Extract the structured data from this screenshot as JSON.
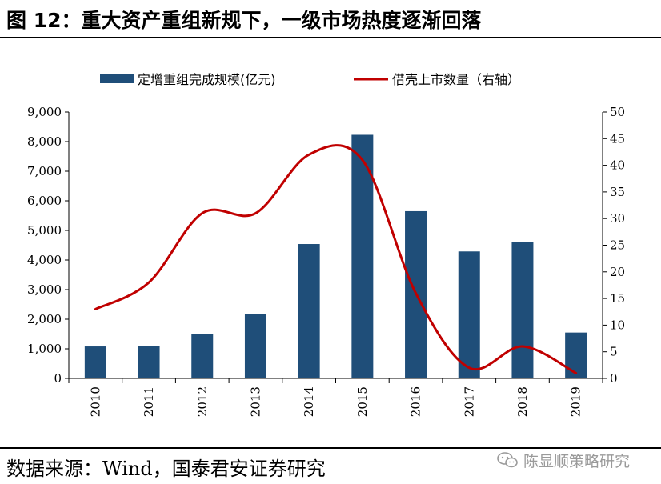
{
  "figure": {
    "title": "图 12：重大资产重组新规下，一级市场热度逐渐回落",
    "source": "数据来源：Wind，国泰君安证券研究",
    "watermark": "陈显顺策略研究",
    "watermark_icon": "wechat-icon"
  },
  "chart_data": {
    "type": "bar",
    "categories": [
      "2010",
      "2011",
      "2012",
      "2013",
      "2014",
      "2015",
      "2016",
      "2017",
      "2018",
      "2019"
    ],
    "series": [
      {
        "name": "定增重组完成规模(亿元)",
        "type": "bar",
        "axis": "left",
        "color": "#1f4e79",
        "values": [
          1080,
          1100,
          1500,
          2180,
          4540,
          8230,
          5650,
          4290,
          4620,
          1550
        ]
      },
      {
        "name": "借壳上市数量（右轴）",
        "type": "line",
        "axis": "right",
        "color": "#c00000",
        "values": [
          13,
          18,
          31,
          31,
          42,
          41,
          16,
          2,
          6,
          1
        ]
      }
    ],
    "left_axis": {
      "ylim": [
        0,
        9000
      ],
      "ticks": [
        "0",
        "1,000",
        "2,000",
        "3,000",
        "4,000",
        "5,000",
        "6,000",
        "7,000",
        "8,000",
        "9,000"
      ]
    },
    "right_axis": {
      "ylim": [
        0,
        50
      ],
      "ticks": [
        "0",
        "5",
        "10",
        "15",
        "20",
        "25",
        "30",
        "35",
        "40",
        "45",
        "50"
      ]
    },
    "grid": false,
    "legend_position": "top"
  }
}
